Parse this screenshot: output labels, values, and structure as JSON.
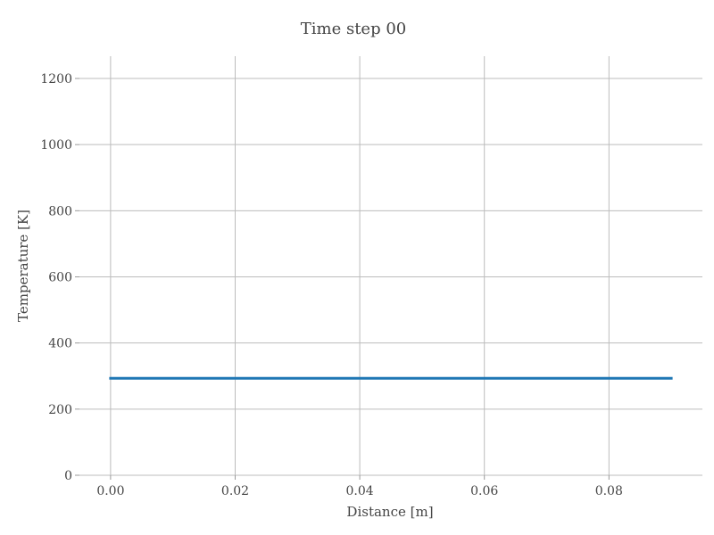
{
  "chart_data": {
    "type": "line",
    "title": "Time step 00",
    "xlabel": "Distance [m]",
    "ylabel": "Temperature [K]",
    "xlim": [
      -0.005,
      0.095
    ],
    "ylim": [
      0,
      1200
    ],
    "xticks": [
      0.0,
      0.02,
      0.04,
      0.06,
      0.08
    ],
    "xtick_labels": [
      "0.00",
      "0.02",
      "0.04",
      "0.06",
      "0.08"
    ],
    "yticks": [
      0,
      200,
      400,
      600,
      800,
      1000,
      1200
    ],
    "ytick_labels": [
      "0",
      "200",
      "400",
      "600",
      "800",
      "1000",
      "1200"
    ],
    "grid": true,
    "series": [
      {
        "color": "#1f77b4",
        "x": [
          0.0,
          0.09
        ],
        "y": [
          293,
          293
        ]
      }
    ]
  }
}
